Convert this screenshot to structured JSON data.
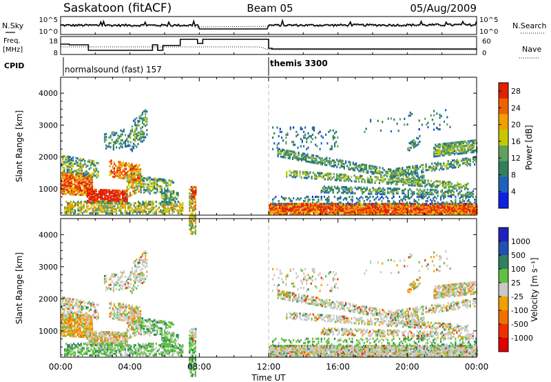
{
  "header": {
    "station": "Saskatoon (fitACF)",
    "beam": "Beam 05",
    "date": "05/Aug/2009"
  },
  "noise_panel": {
    "left_label": "N.Sky",
    "right_label": "N.Search",
    "left_ticks": [
      "10^5",
      "10^0"
    ],
    "right_ticks": [
      "10^5",
      "10^0"
    ]
  },
  "freq_panel": {
    "left_label_1": "Freq.",
    "left_label_2": "[MHz]",
    "right_label": "Nave",
    "left_ticks": [
      "18",
      "8"
    ],
    "right_ticks": [
      "60",
      "0"
    ]
  },
  "cpid": {
    "label": "CPID",
    "mode_1": "normalsound (fast) 157",
    "mode_2": "themis 3300"
  },
  "colors": {
    "power": [
      "#1020e0",
      "#2060c0",
      "#308060",
      "#60a060",
      "#c8c800",
      "#f0a000",
      "#f06000",
      "#e02000"
    ],
    "velocity": [
      "#2020c0",
      "#2050b0",
      "#308060",
      "#60c040",
      "#c8c8c8",
      "#f0a000",
      "#f07000",
      "#f03000",
      "#e00000"
    ]
  },
  "chart_data": [
    {
      "type": "heatmap",
      "name": "power",
      "ylabel": "Slant Range [km]",
      "ylim": [
        180,
        4500
      ],
      "yticks": [
        "1000",
        "2000",
        "3000",
        "4000"
      ],
      "xlim_hours": [
        0,
        24
      ],
      "xticks": [
        "00:00",
        "04:00",
        "08:00",
        "12:00",
        "16:00",
        "20:00",
        "00:00"
      ],
      "colorbar_label": "Power [dB]",
      "colorbar_ticks": [
        "4",
        "8",
        "12",
        "16",
        "20",
        "24",
        "28"
      ],
      "colorbar_range": [
        0,
        30
      ]
    },
    {
      "type": "heatmap",
      "name": "velocity",
      "ylabel": "Slant Range [km]",
      "ylim": [
        180,
        4500
      ],
      "yticks": [
        "1000",
        "2000",
        "3000",
        "4000"
      ],
      "xlim_hours": [
        0,
        24
      ],
      "xticks": [
        "00:00",
        "04:00",
        "08:00",
        "12:00",
        "16:00",
        "20:00",
        "00:00"
      ],
      "xlabel": "Time UT",
      "colorbar_label": "Velocity [m s⁻¹]",
      "colorbar_ticks": [
        "1000",
        "500",
        "100",
        "25",
        "-25",
        "-100",
        "-500",
        "-1000"
      ]
    }
  ]
}
